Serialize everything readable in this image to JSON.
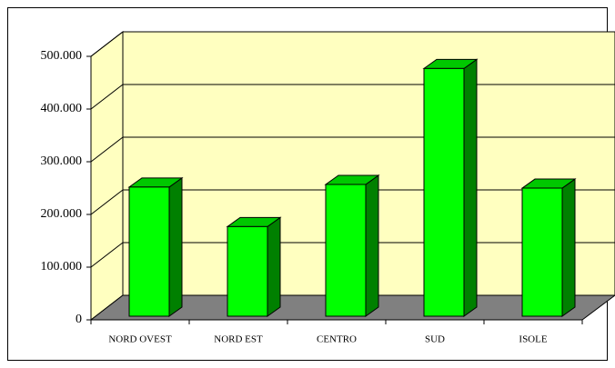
{
  "chart_data": {
    "type": "bar3d",
    "categories": [
      "NORD OVEST",
      "NORD EST",
      "CENTRO",
      "SUD",
      "ISOLE"
    ],
    "values": [
      245000,
      170000,
      250000,
      470000,
      243000
    ],
    "color": "#00ff00",
    "ylim": [
      0,
      500000
    ],
    "yticks": [
      0,
      {
        "value": 100000,
        "label": "100.000"
      },
      {
        "value": 200000,
        "label": "200.000"
      },
      {
        "value": 300000,
        "label": "300.000"
      },
      {
        "value": 400000,
        "label": "400.000"
      },
      {
        "value": 500000,
        "label": "500.000"
      }
    ],
    "grid": true
  }
}
